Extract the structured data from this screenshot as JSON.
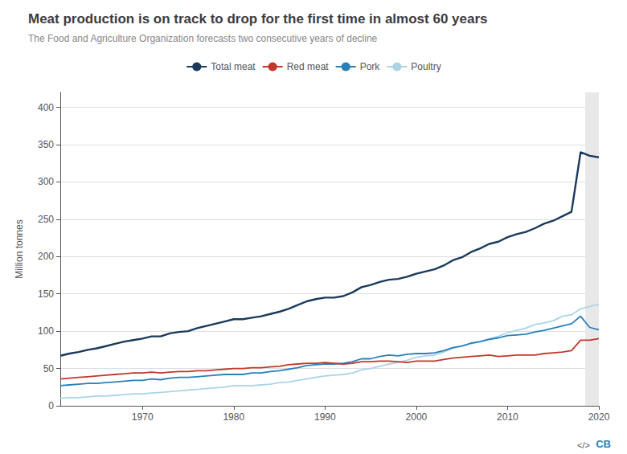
{
  "chart_data": {
    "type": "line",
    "title": "Meat production is on track to drop for the first time in almost 60 years",
    "subtitle": "The Food and Agriculture Organization forecasts two consecutive years of decline",
    "ylabel": "Million tonnes",
    "x": [
      1961,
      1962,
      1963,
      1964,
      1965,
      1966,
      1967,
      1968,
      1969,
      1970,
      1971,
      1972,
      1973,
      1974,
      1975,
      1976,
      1977,
      1978,
      1979,
      1980,
      1981,
      1982,
      1983,
      1984,
      1985,
      1986,
      1987,
      1988,
      1989,
      1990,
      1991,
      1992,
      1993,
      1994,
      1995,
      1996,
      1997,
      1998,
      1999,
      2000,
      2001,
      2002,
      2003,
      2004,
      2005,
      2006,
      2007,
      2008,
      2009,
      2010,
      2011,
      2012,
      2013,
      2014,
      2015,
      2016,
      2017,
      2018,
      2019,
      2020
    ],
    "series": [
      {
        "name": "Total meat",
        "color": "#1a3a5c",
        "values": [
          67,
          70,
          72,
          75,
          77,
          80,
          83,
          86,
          88,
          90,
          93,
          93,
          97,
          99,
          100,
          104,
          107,
          110,
          113,
          116,
          116,
          118,
          120,
          123,
          126,
          130,
          135,
          140,
          143,
          145,
          145,
          147,
          152,
          159,
          162,
          166,
          169,
          170,
          173,
          177,
          180,
          183,
          188,
          195,
          199,
          206,
          211,
          217,
          220,
          226,
          230,
          233,
          238,
          244,
          248,
          254,
          260,
          340,
          335,
          333
        ]
      },
      {
        "name": "Red meat",
        "color": "#c0392b",
        "values": [
          36,
          37,
          38,
          39,
          40,
          41,
          42,
          43,
          44,
          44,
          45,
          44,
          45,
          46,
          46,
          47,
          47,
          48,
          49,
          50,
          50,
          51,
          51,
          52,
          53,
          55,
          56,
          57,
          57,
          58,
          57,
          56,
          57,
          59,
          59,
          60,
          60,
          59,
          58,
          60,
          60,
          60,
          62,
          64,
          65,
          66,
          67,
          68,
          66,
          67,
          68,
          68,
          68,
          70,
          71,
          72,
          74,
          88,
          88,
          90
        ]
      },
      {
        "name": "Pork",
        "color": "#2980b9",
        "values": [
          27,
          28,
          29,
          30,
          30,
          31,
          32,
          33,
          34,
          34,
          36,
          35,
          37,
          38,
          38,
          39,
          40,
          41,
          42,
          42,
          42,
          44,
          44,
          46,
          47,
          49,
          51,
          54,
          55,
          56,
          56,
          57,
          59,
          63,
          63,
          66,
          68,
          67,
          69,
          70,
          70,
          71,
          74,
          78,
          80,
          84,
          86,
          89,
          91,
          94,
          95,
          96,
          99,
          101,
          104,
          107,
          110,
          120,
          105,
          102
        ]
      },
      {
        "name": "Poultry",
        "color": "#aad4e8",
        "values": [
          10,
          11,
          11,
          12,
          13,
          13,
          14,
          15,
          16,
          16,
          17,
          18,
          19,
          20,
          21,
          22,
          23,
          24,
          25,
          27,
          27,
          27,
          28,
          29,
          31,
          32,
          34,
          36,
          38,
          40,
          41,
          42,
          44,
          48,
          50,
          53,
          56,
          58,
          61,
          65,
          67,
          68,
          72,
          77,
          80,
          83,
          86,
          90,
          93,
          98,
          101,
          104,
          109,
          111,
          114,
          120,
          122,
          130,
          133,
          136
        ]
      }
    ],
    "xlim": [
      1961,
      2020
    ],
    "xticks": [
      1970,
      1980,
      1990,
      2000,
      2010,
      2020
    ],
    "ylim": [
      0,
      420
    ],
    "yticks": [
      0,
      50,
      100,
      150,
      200,
      250,
      300,
      350,
      400
    ],
    "grid": true,
    "legend": "top",
    "shaded_x": [
      2018.5,
      2020.5
    ],
    "shade_color": "#e8e8e8",
    "annotations": [
      {
        "text": "</>",
        "color": "#555555"
      },
      {
        "text": "CB",
        "color": "#2980b9"
      }
    ]
  }
}
